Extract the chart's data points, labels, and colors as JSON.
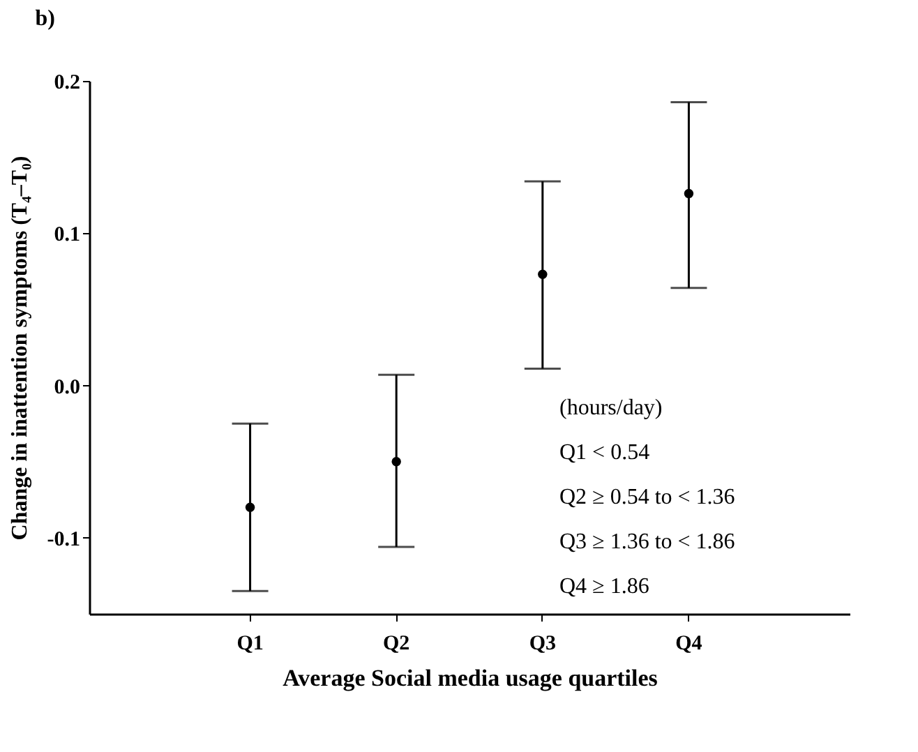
{
  "chart_data": {
    "type": "scatter",
    "title": "b)",
    "xlabel": "Average Social media usage quartiles",
    "ylabel": "Change in inattention symptoms (T₄–T₀)",
    "categories": [
      "Q1",
      "Q2",
      "Q3",
      "Q4"
    ],
    "series": [
      {
        "color": "#000000",
        "values": [
          -0.08,
          -0.05,
          0.073,
          0.126
        ],
        "errors": [
          [
            -0.135,
            -0.025
          ],
          [
            -0.106,
            0.007
          ],
          [
            0.011,
            0.134
          ],
          [
            0.064,
            0.186
          ]
        ]
      }
    ],
    "ylim": [
      -0.15,
      0.2
    ],
    "yticks": [
      {
        "value": -0.1,
        "label": "-0.1"
      },
      {
        "value": 0,
        "label": "0.0"
      },
      0.1,
      0.2
    ],
    "marker": "circle",
    "grid": false,
    "annotations": [
      "(hours/day)",
      "Q1  < 0.54",
      "Q2  ≥ 0.54 to < 1.36",
      "Q3  ≥ 1.36 to < 1.86",
      "Q4  ≥ 1.86"
    ]
  }
}
